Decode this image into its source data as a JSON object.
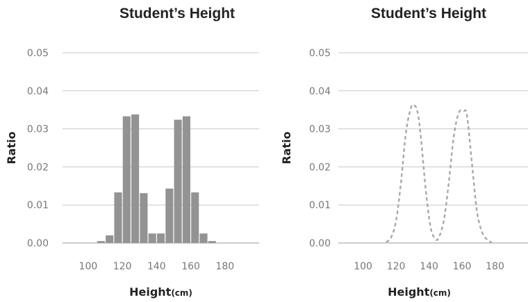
{
  "chart_data": [
    {
      "type": "bar",
      "title": "Student’s Height",
      "xlabel": "Height",
      "xlabel_unit": "(cm)",
      "ylabel": "Ratio",
      "xlim": [
        85,
        200
      ],
      "ylim": [
        0,
        0.05
      ],
      "x_ticks": [
        "100",
        "120",
        "140",
        "160",
        "180"
      ],
      "y_ticks": [
        "0.00",
        "0.01",
        "0.02",
        "0.03",
        "0.04",
        "0.05"
      ],
      "grid": "horizontal",
      "bin_width": 5,
      "bins": [
        105,
        110,
        115,
        120,
        125,
        130,
        135,
        140,
        145,
        150,
        155,
        160,
        165,
        170,
        175
      ],
      "values": [
        0.0005,
        0.002,
        0.0133,
        0.0333,
        0.0338,
        0.0131,
        0.0025,
        0.0025,
        0.0143,
        0.0324,
        0.0333,
        0.0133,
        0.0025,
        0.0005,
        0.0
      ],
      "color": "#939393"
    },
    {
      "type": "line",
      "title": "Student’s Height",
      "xlabel": "Height",
      "xlabel_unit": "(cm)",
      "ylabel": "Ratio",
      "xlim": [
        85,
        200
      ],
      "ylim": [
        0,
        0.05
      ],
      "x_ticks": [
        "100",
        "120",
        "140",
        "160",
        "180"
      ],
      "y_ticks": [
        "0.00",
        "0.01",
        "0.02",
        "0.03",
        "0.04",
        "0.05"
      ],
      "grid": "horizontal",
      "line_style": "dashed",
      "x": [
        114,
        117,
        120,
        123,
        126,
        129,
        131,
        133,
        135,
        138,
        141,
        144,
        146,
        149,
        152,
        155,
        158,
        161,
        163,
        166,
        169,
        172,
        175,
        178
      ],
      "y": [
        0.0002,
        0.0015,
        0.0058,
        0.016,
        0.029,
        0.0355,
        0.0362,
        0.0345,
        0.028,
        0.014,
        0.004,
        0.001,
        0.0015,
        0.006,
        0.016,
        0.028,
        0.0342,
        0.0347,
        0.0335,
        0.021,
        0.0085,
        0.003,
        0.001,
        0.0001
      ],
      "color": "#a8a8a8"
    }
  ]
}
